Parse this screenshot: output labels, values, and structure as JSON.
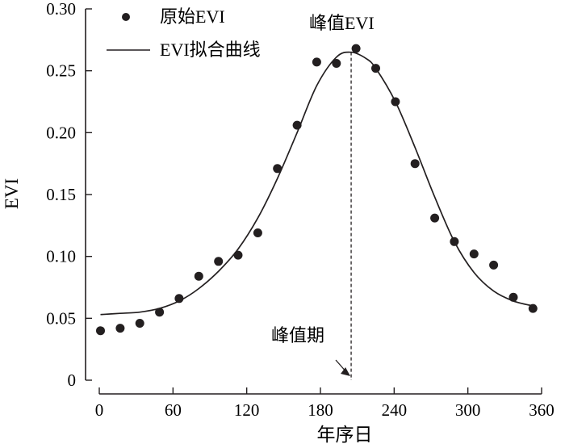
{
  "chart_data": {
    "type": "scatter",
    "xlabel": "年序日",
    "ylabel": "EVI",
    "xlim": [
      0,
      360
    ],
    "ylim": [
      0,
      0.3
    ],
    "xticks": [
      "0",
      "60",
      "120",
      "180",
      "240",
      "300",
      "360"
    ],
    "yticks": [
      "0",
      "0.05",
      "0.10",
      "0.15",
      "0.20",
      "0.25",
      "0.30"
    ],
    "legend": {
      "position": "top-left",
      "points_label": "原始EVI",
      "line_label": "EVI拟合曲线"
    },
    "series": [
      {
        "name": "原始EVI",
        "kind": "points",
        "color": "#231f20",
        "x": [
          1,
          17,
          33,
          49,
          65,
          81,
          97,
          113,
          129,
          145,
          161,
          177,
          193,
          209,
          225,
          241,
          257,
          273,
          289,
          305,
          321,
          337,
          353
        ],
        "y": [
          0.04,
          0.042,
          0.046,
          0.055,
          0.066,
          0.084,
          0.096,
          0.101,
          0.119,
          0.171,
          0.206,
          0.257,
          0.256,
          0.268,
          0.252,
          0.225,
          0.175,
          0.131,
          0.112,
          0.102,
          0.093,
          0.067,
          0.058
        ]
      },
      {
        "name": "EVI拟合曲线",
        "kind": "line",
        "color": "#231f20",
        "x": [
          1,
          17,
          33,
          49,
          65,
          81,
          97,
          113,
          129,
          145,
          161,
          177,
          193,
          205,
          217,
          225,
          241,
          257,
          273,
          289,
          305,
          321,
          337,
          353
        ],
        "y": [
          0.053,
          0.054,
          0.055,
          0.058,
          0.064,
          0.074,
          0.088,
          0.106,
          0.131,
          0.163,
          0.2,
          0.238,
          0.261,
          0.265,
          0.26,
          0.252,
          0.225,
          0.188,
          0.148,
          0.112,
          0.087,
          0.072,
          0.064,
          0.06
        ]
      }
    ],
    "annotations": [
      {
        "text": "峰值EVI",
        "x": 209
      },
      {
        "text": "峰值期",
        "x": 205
      }
    ],
    "peak_day": 205
  }
}
